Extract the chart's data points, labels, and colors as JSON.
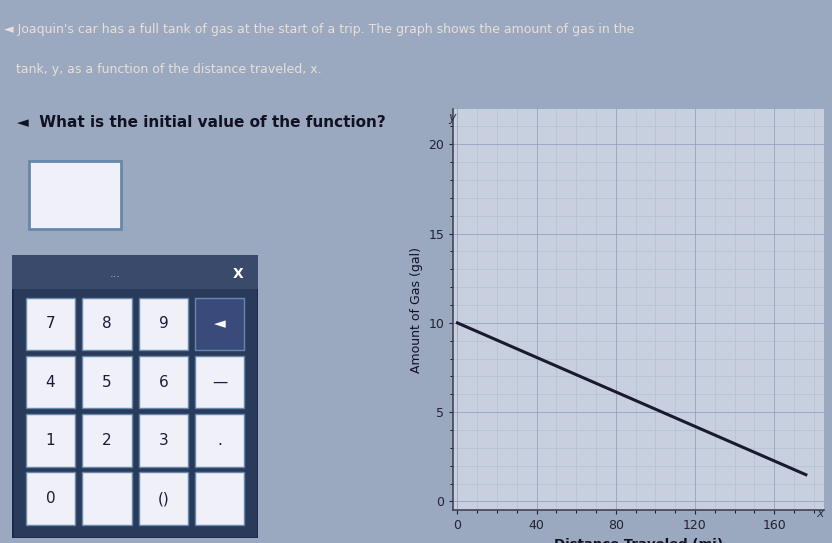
{
  "title_text1": "  Joaquin's car has a full tank of gas at the start of a trip. The graph shows the amount of gas in the",
  "title_text2": "  tank, y, as a function of the distance traveled, x.",
  "title_bg_color": "#7a6a5a",
  "title_text_color": "#e8e0d8",
  "question_text": "What is the initial value of the function?",
  "main_bg_color": "#9aa8c0",
  "graph_area_bg": "#9aa8c0",
  "line_x": [
    0,
    176
  ],
  "line_y": [
    10,
    1.5
  ],
  "line_color": "#1a1a2e",
  "line_width": 2.2,
  "xlabel": "Distance Traveled (mi)",
  "ylabel": "Amount of Gas (gal)",
  "xlim": [
    -2,
    185
  ],
  "ylim": [
    -0.5,
    22
  ],
  "xticks": [
    0,
    40,
    80,
    120,
    160
  ],
  "yticks": [
    0,
    5,
    10,
    15,
    20
  ],
  "tick_fontsize": 9,
  "grid_color": "#8899bb",
  "grid_alpha": 0.7,
  "graph_facecolor": "#c8d0e0",
  "answer_box_color": "#f0f0f8",
  "answer_box_border_color": "#6688aa",
  "keypad_bg": "#2a3a5a",
  "keypad_header_bg": "#3a4a6a",
  "keypad_border": "#1a2a4a",
  "btn_bg": "#f0f0f8",
  "btn_border": "#6688aa",
  "del_btn_bg": "#3a4a7a",
  "btn_text_color": "#1a1a3a",
  "del_text_color": "#ffffff"
}
